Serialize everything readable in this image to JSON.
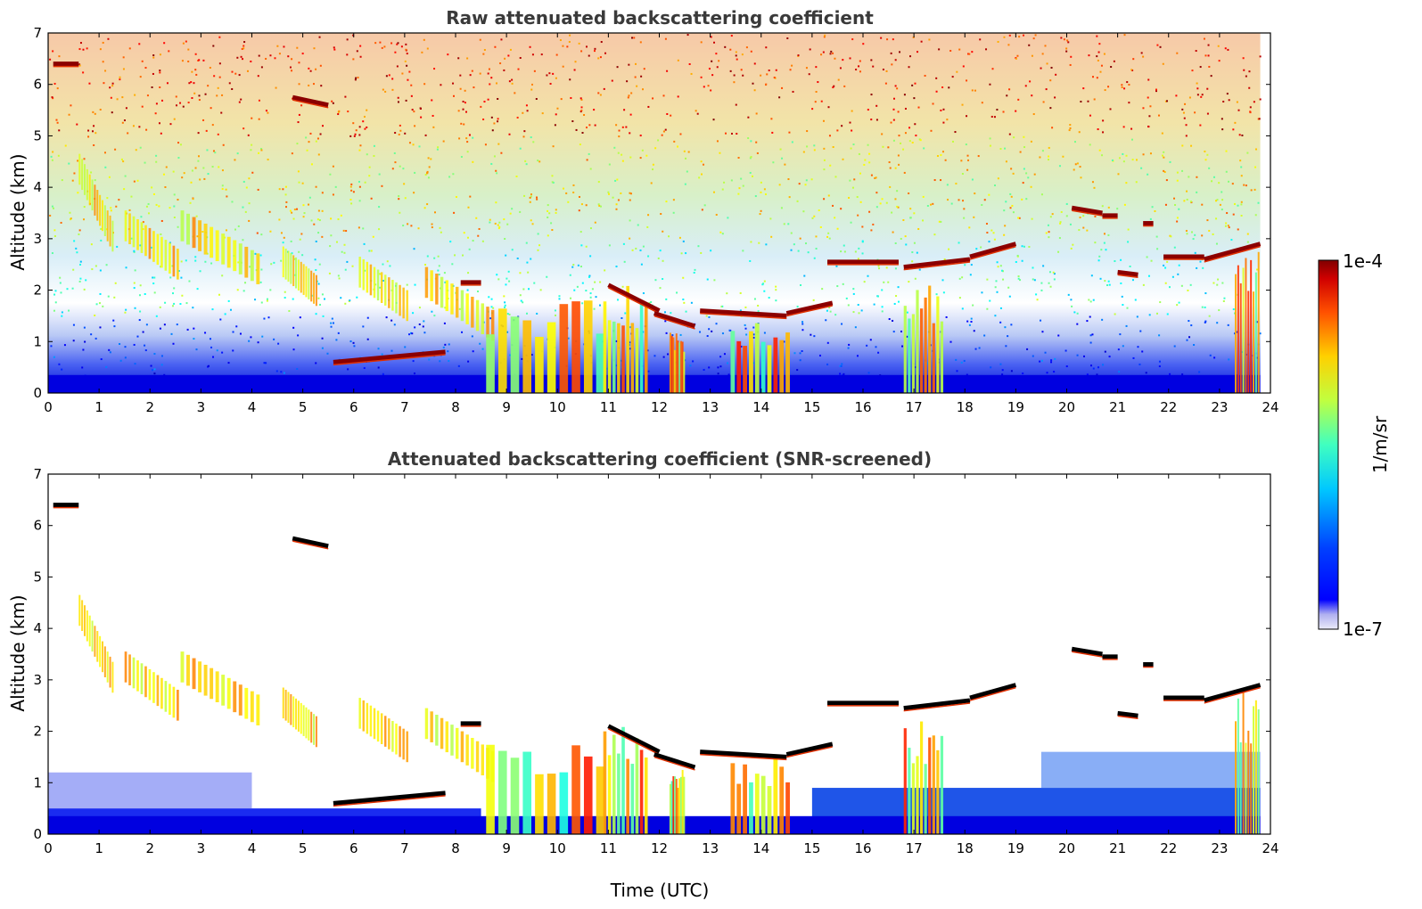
{
  "chart_data": [
    {
      "type": "heatmap",
      "title": "Raw attenuated backscattering coefficient",
      "xlabel": "",
      "ylabel": "Altitude (km)",
      "xlim": [
        0,
        24
      ],
      "ylim": [
        0,
        7
      ],
      "xticks": [
        "0",
        "1",
        "2",
        "3",
        "4",
        "5",
        "6",
        "7",
        "8",
        "9",
        "10",
        "11",
        "12",
        "13",
        "14",
        "15",
        "16",
        "17",
        "18",
        "19",
        "20",
        "21",
        "22",
        "23",
        "24"
      ],
      "yticks": [
        "0",
        "1",
        "2",
        "3",
        "4",
        "5",
        "6",
        "7"
      ],
      "screened": false
    },
    {
      "type": "heatmap",
      "title": "Attenuated backscattering coefficient (SNR-screened)",
      "xlabel": "Time (UTC)",
      "ylabel": "Altitude (km)",
      "xlim": [
        0,
        24
      ],
      "ylim": [
        0,
        7
      ],
      "xticks": [
        "0",
        "1",
        "2",
        "3",
        "4",
        "5",
        "6",
        "7",
        "8",
        "9",
        "10",
        "11",
        "12",
        "13",
        "14",
        "15",
        "16",
        "17",
        "18",
        "19",
        "20",
        "21",
        "22",
        "23",
        "24"
      ],
      "yticks": [
        "0",
        "1",
        "2",
        "3",
        "4",
        "5",
        "6",
        "7"
      ],
      "screened": true
    }
  ],
  "colorbar": {
    "label": "1/m/sr",
    "max_label": "1e-4",
    "min_label": "1e-7",
    "scale": "log",
    "colormap": "jet"
  },
  "features": {
    "liquid_layers": [
      {
        "t0": 8.1,
        "t1": 8.5,
        "z": 2.15
      },
      {
        "t0": 11.0,
        "t1": 12.0,
        "z": 2.1,
        "z1": 1.6
      },
      {
        "t0": 11.9,
        "t1": 12.7,
        "z": 1.55,
        "z1": 1.3
      },
      {
        "t0": 12.8,
        "t1": 14.5,
        "z": 1.6,
        "z1": 1.5
      },
      {
        "t0": 14.5,
        "t1": 15.4,
        "z": 1.55,
        "z1": 1.75
      },
      {
        "t0": 15.3,
        "t1": 16.7,
        "z": 2.55
      },
      {
        "t0": 16.8,
        "t1": 18.1,
        "z": 2.45,
        "z1": 2.6
      },
      {
        "t0": 18.1,
        "t1": 19.0,
        "z": 2.65,
        "z1": 2.9
      },
      {
        "t0": 20.1,
        "t1": 20.7,
        "z": 3.6,
        "z1": 3.5
      },
      {
        "t0": 20.7,
        "t1": 21.0,
        "z": 3.45
      },
      {
        "t0": 21.5,
        "t1": 21.7,
        "z": 3.3
      },
      {
        "t0": 21.0,
        "t1": 21.4,
        "z": 2.35,
        "z1": 2.3
      },
      {
        "t0": 21.9,
        "t1": 22.7,
        "z": 2.65
      },
      {
        "t0": 22.7,
        "t1": 23.8,
        "z": 2.6,
        "z1": 2.9
      },
      {
        "t0": 5.6,
        "t1": 7.8,
        "z": 0.6,
        "z1": 0.8
      },
      {
        "t0": 0.1,
        "t1": 0.6,
        "z": 6.4
      },
      {
        "t0": 4.8,
        "t1": 5.5,
        "z": 5.75,
        "z1": 5.6
      }
    ],
    "ice_streaks": [
      {
        "t0": 0.6,
        "t1": 1.3,
        "z": 4.3,
        "z1": 2.9
      },
      {
        "t0": 1.5,
        "t1": 2.6,
        "z": 3.2,
        "z1": 2.4
      },
      {
        "t0": 2.6,
        "t1": 4.2,
        "z": 3.2,
        "z1": 2.3
      },
      {
        "t0": 4.6,
        "t1": 5.3,
        "z": 2.5,
        "z1": 1.9
      },
      {
        "t0": 6.1,
        "t1": 7.1,
        "z": 2.3,
        "z1": 1.6
      },
      {
        "t0": 7.4,
        "t1": 8.8,
        "z": 2.1,
        "z1": 1.2
      }
    ],
    "precip_shafts": [
      {
        "t0": 8.6,
        "t1": 11.0,
        "z_top": 1.8
      },
      {
        "t0": 10.9,
        "t1": 11.8,
        "z_top": 2.1
      },
      {
        "t0": 12.2,
        "t1": 12.5,
        "z_top": 1.3
      },
      {
        "t0": 13.4,
        "t1": 14.6,
        "z_top": 1.5
      },
      {
        "t0": 16.8,
        "t1": 17.6,
        "z_top": 2.2
      },
      {
        "t0": 23.3,
        "t1": 23.8,
        "z_top": 2.9
      }
    ]
  }
}
